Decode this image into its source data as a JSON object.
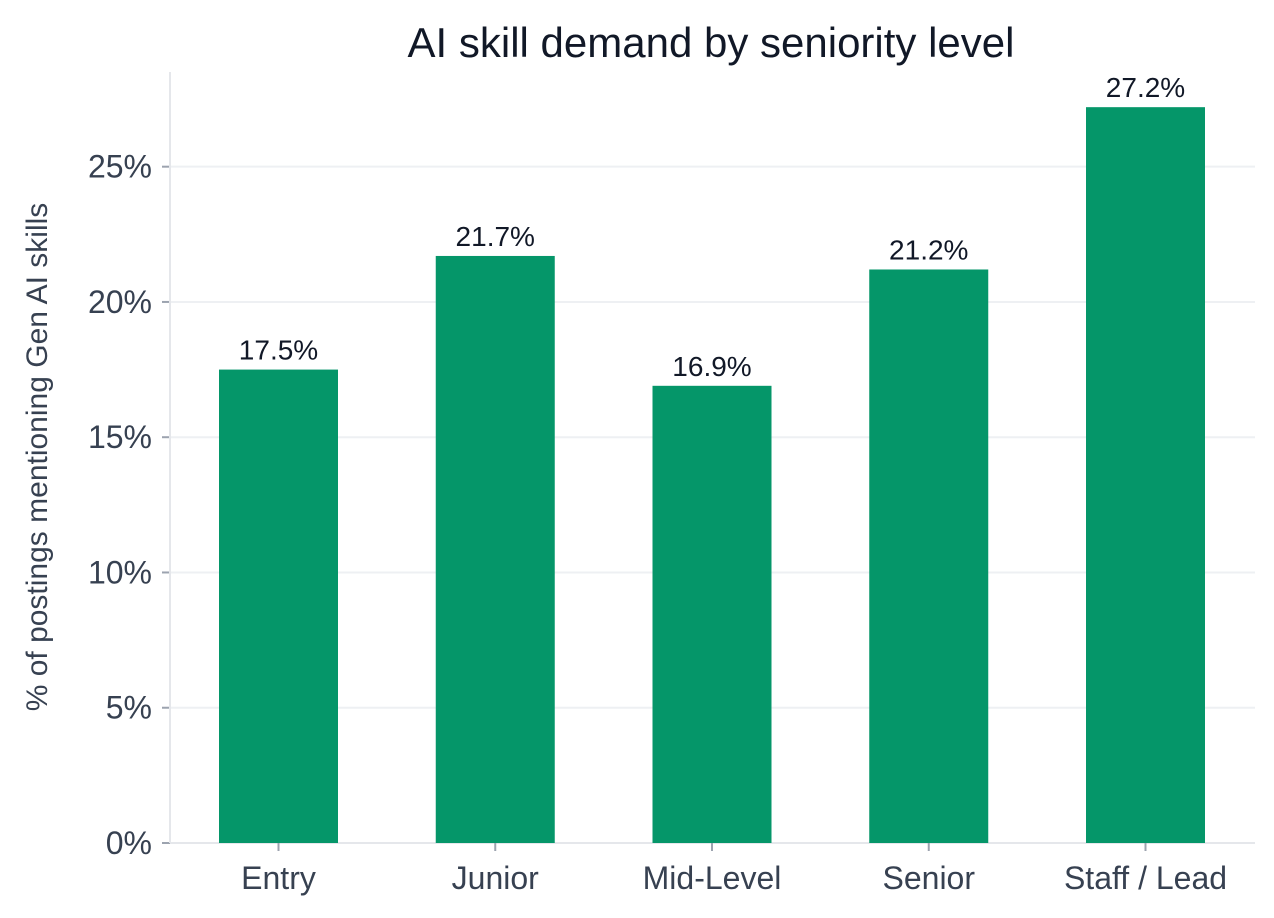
{
  "chart_data": {
    "type": "bar",
    "title": "AI skill demand by seniority level",
    "xlabel": "",
    "ylabel": "% of postings mentioning Gen AI skills",
    "categories": [
      "Entry",
      "Junior",
      "Mid-Level",
      "Senior",
      "Staff / Lead"
    ],
    "values": [
      17.5,
      21.7,
      16.9,
      21.2,
      27.2
    ],
    "data_labels": [
      "17.5%",
      "21.7%",
      "16.9%",
      "21.2%",
      "27.2%"
    ],
    "ylim": [
      0,
      28.5
    ],
    "yticks": [
      0,
      5,
      10,
      15,
      20,
      25
    ],
    "ytick_labels": [
      "0%",
      "5%",
      "10%",
      "15%",
      "20%",
      "25%"
    ],
    "grid": true,
    "legend": "none",
    "colors": {
      "bar": "#059669",
      "title": "#111827",
      "text": "#374151",
      "grid": "#eef0f3"
    }
  }
}
